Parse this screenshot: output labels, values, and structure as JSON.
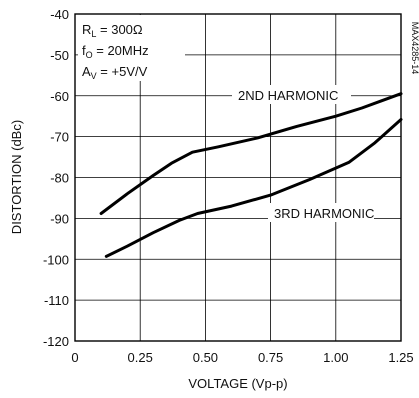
{
  "chart_data": {
    "type": "line",
    "xlabel": "VOLTAGE (Vp-p)",
    "ylabel": "DISTORTION (dBc)",
    "xlim": [
      0,
      1.25
    ],
    "ylim": [
      -120,
      -40
    ],
    "x_ticks": [
      "0",
      "0.25",
      "0.50",
      "0.75",
      "1.00",
      "1.25"
    ],
    "y_ticks": [
      "-40",
      "-50",
      "-60",
      "-70",
      "-80",
      "-90",
      "-100",
      "-110",
      "-120"
    ],
    "grid": true,
    "conditions": {
      "rl": {
        "main": "R",
        "sub": "L",
        "value": " = 300Ω"
      },
      "f0": {
        "main": "f",
        "sub": "O",
        "value": " = 20MHz"
      },
      "av": {
        "main": "A",
        "sub": "V",
        "value": " = +5V/V"
      }
    },
    "part_number": "MAX4285-14",
    "series": [
      {
        "name": "2ND HARMONIC",
        "x": [
          0.1,
          0.2,
          0.3,
          0.37,
          0.45,
          0.55,
          0.7,
          0.85,
          1.0,
          1.1,
          1.25
        ],
        "y": [
          -88.8,
          -84.0,
          -79.5,
          -76.5,
          -73.8,
          -72.5,
          -70.3,
          -67.5,
          -65.0,
          -63.0,
          -59.5
        ]
      },
      {
        "name": "3RD HARMONIC",
        "x": [
          0.12,
          0.2,
          0.3,
          0.4,
          0.47,
          0.6,
          0.75,
          0.9,
          1.05,
          1.15,
          1.25
        ],
        "y": [
          -99.3,
          -96.8,
          -93.5,
          -90.5,
          -88.8,
          -87.0,
          -84.3,
          -80.5,
          -76.3,
          -71.5,
          -65.8
        ]
      }
    ]
  }
}
